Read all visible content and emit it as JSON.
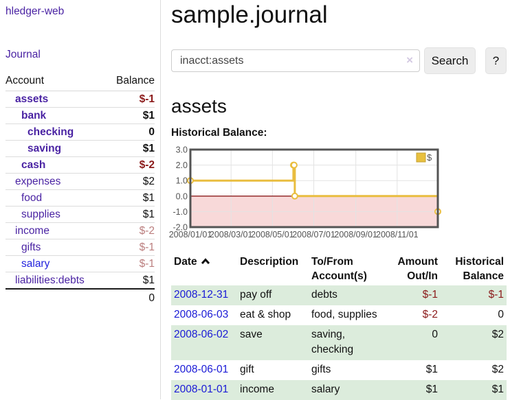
{
  "app": {
    "brand": "hledger-web"
  },
  "sidebar": {
    "journal_label": "Journal",
    "header": {
      "account": "Account",
      "balance": "Balance"
    },
    "accounts": [
      {
        "name": "assets",
        "depth": 1,
        "bold": true,
        "balance": "$-1",
        "balance_tone": "neg-strong"
      },
      {
        "name": "bank",
        "depth": 2,
        "bold": true,
        "balance": "$1",
        "balance_tone": "pos"
      },
      {
        "name": "checking",
        "depth": 3,
        "bold": true,
        "balance": "0",
        "balance_tone": "pos"
      },
      {
        "name": "saving",
        "depth": 3,
        "bold": true,
        "balance": "$1",
        "balance_tone": "pos"
      },
      {
        "name": "cash",
        "depth": 2,
        "bold": true,
        "balance": "$-2",
        "balance_tone": "neg-strong"
      },
      {
        "name": "expenses",
        "depth": 1,
        "bold": false,
        "balance": "$2",
        "balance_tone": "pos"
      },
      {
        "name": "food",
        "depth": 2,
        "bold": false,
        "balance": "$1",
        "balance_tone": "pos"
      },
      {
        "name": "supplies",
        "depth": 2,
        "bold": false,
        "balance": "$1",
        "balance_tone": "pos"
      },
      {
        "name": "income",
        "depth": 1,
        "bold": false,
        "balance": "$-2",
        "balance_tone": "neg-weak"
      },
      {
        "name": "gifts",
        "depth": 2,
        "bold": false,
        "balance": "$-1",
        "balance_tone": "neg-weak"
      },
      {
        "name": "salary",
        "depth": 2,
        "bold": false,
        "link_tone": "blue",
        "balance": "$-1",
        "balance_tone": "neg-weak"
      },
      {
        "name": "liabilities:debts",
        "depth": 1,
        "bold": false,
        "balance": "$1",
        "balance_tone": "pos"
      }
    ],
    "total": "0"
  },
  "main": {
    "title": "sample.journal",
    "search": {
      "value": "inacct:assets",
      "clear_icon": "×",
      "button_label": "Search",
      "help_label": "?"
    },
    "account_heading": "assets",
    "chart_label": "Historical Balance:"
  },
  "chart_data": {
    "type": "line",
    "title": "Historical Balance:",
    "step": true,
    "series": [
      {
        "name": "$",
        "x": [
          "2008-01-01",
          "2008-06-01",
          "2008-06-02",
          "2008-06-03",
          "2008-12-31"
        ],
        "values": [
          1,
          2,
          2,
          0,
          -1
        ]
      }
    ],
    "xlim": [
      "2008-01-01",
      "2008-12-31"
    ],
    "ylim": [
      -2,
      3
    ],
    "x_ticks": [
      "2008/01/01",
      "2008/03/01",
      "2008/05/01",
      "2008/07/01",
      "2008/09/01",
      "2008/11/01"
    ],
    "y_ticks": [
      "3.0",
      "2.0",
      "1.0",
      "0.0",
      "-1.0",
      "-2.0"
    ],
    "grid": true,
    "legend_position": "top-right",
    "legend_label": "$",
    "colors": {
      "line": "#e9bd3f",
      "marker_fill": "#ffffff",
      "legend_swatch": "#e8c03f",
      "legend_border": "#c5a233",
      "negative_region": "#f8d9d9",
      "zero_line": "#8b1c1c",
      "grid": "#e3e3e3",
      "border": "#545454",
      "tick_text": "#545454"
    }
  },
  "register": {
    "headers": [
      {
        "label": "Date",
        "align": "left",
        "sort_icon": "chevron-up"
      },
      {
        "label": "Description",
        "align": "left"
      },
      {
        "label": "To/From Account(s)",
        "align": "left"
      },
      {
        "label": "Amount Out/In",
        "align": "right"
      },
      {
        "label": "Historical Balance",
        "align": "right"
      }
    ],
    "rows": [
      {
        "date": "2008-12-31",
        "description": "pay off",
        "accounts": "debts",
        "amount": "$-1",
        "amount_tone": "neg",
        "balance": "$-1",
        "balance_tone": "neg"
      },
      {
        "date": "2008-06-03",
        "description": "eat & shop",
        "accounts": "food, supplies",
        "amount": "$-2",
        "amount_tone": "neg",
        "balance": "0",
        "balance_tone": "pos"
      },
      {
        "date": "2008-06-02",
        "description": "save",
        "accounts": "saving, checking",
        "amount": "0",
        "amount_tone": "pos",
        "balance": "$2",
        "balance_tone": "pos"
      },
      {
        "date": "2008-06-01",
        "description": "gift",
        "accounts": "gifts",
        "amount": "$1",
        "amount_tone": "pos",
        "balance": "$2",
        "balance_tone": "pos"
      },
      {
        "date": "2008-01-01",
        "description": "income",
        "accounts": "salary",
        "amount": "$1",
        "amount_tone": "pos",
        "balance": "$1",
        "balance_tone": "pos"
      }
    ]
  },
  "colors": {
    "link_purple": "#4a23a3",
    "link_blue": "#2121dd",
    "date_link_blue": "#1a1ad6",
    "negative_strong": "#8b1a1a",
    "negative_weak": "#bb7e7e",
    "row_green": "#dcecdc"
  }
}
